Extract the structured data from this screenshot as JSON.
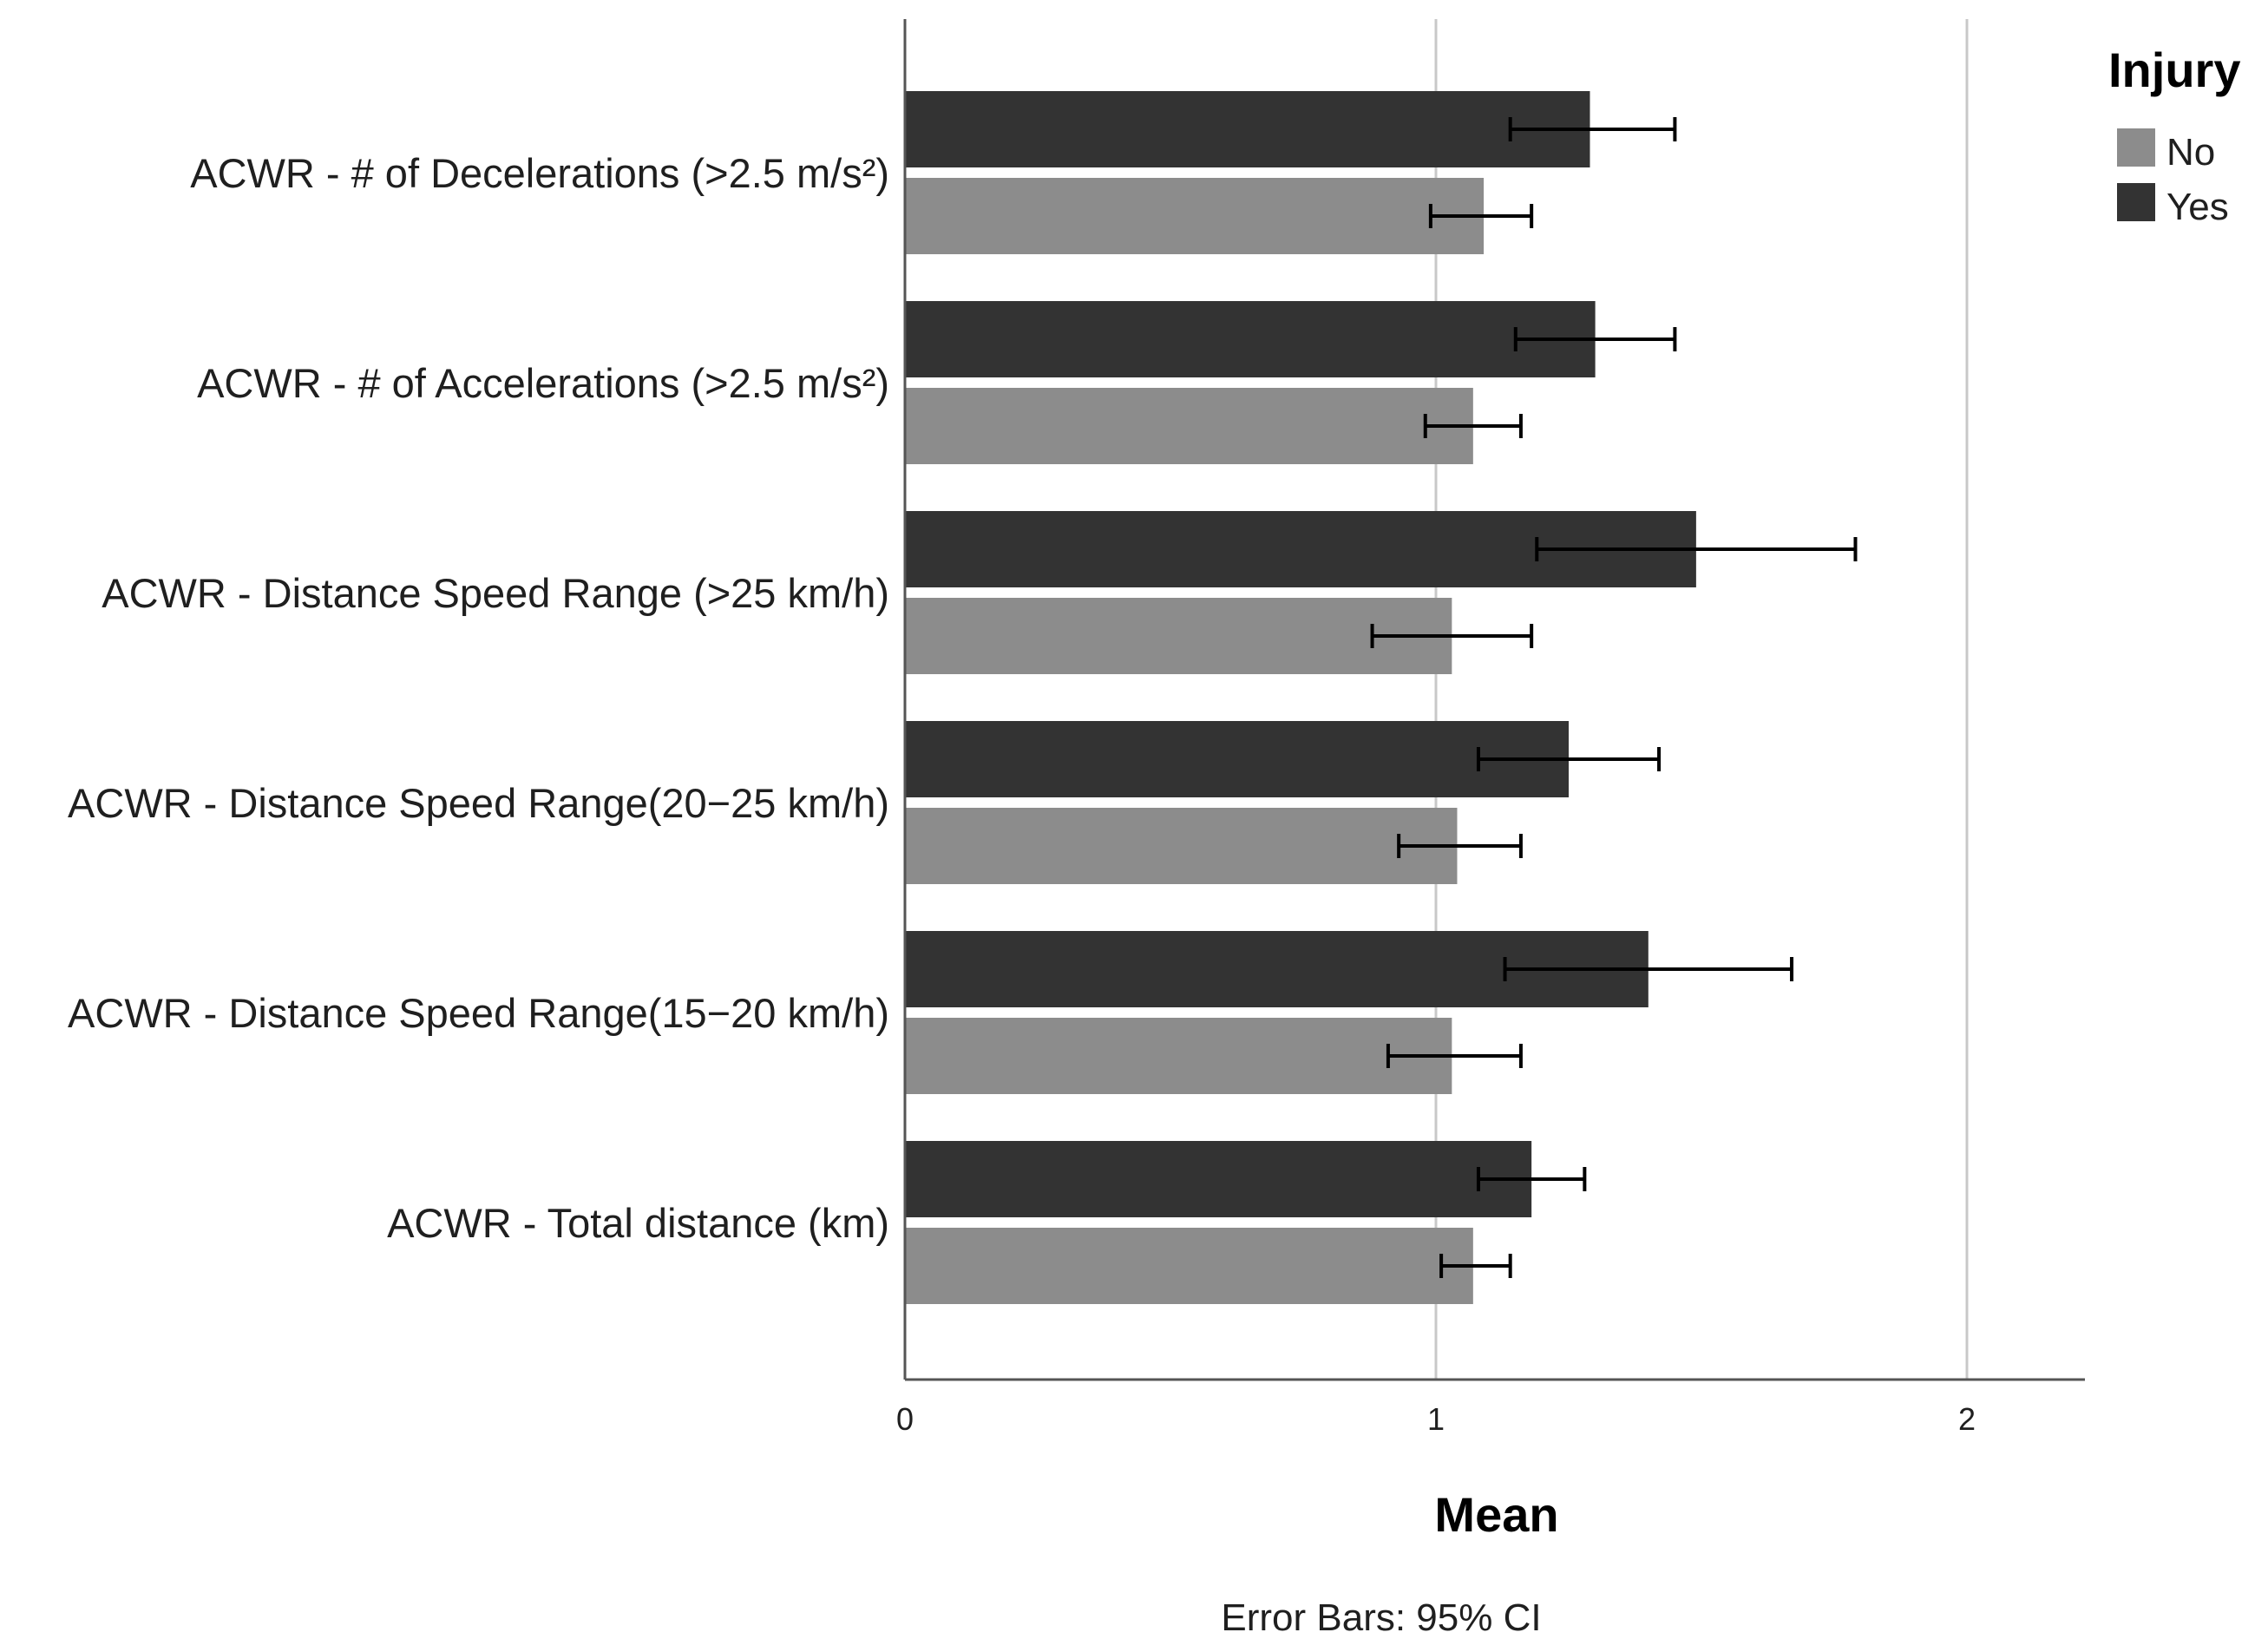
{
  "chart_data": {
    "type": "bar",
    "orientation": "horizontal",
    "title": "",
    "xlabel": "Mean",
    "ylabel": "",
    "xlim": [
      0,
      2.2
    ],
    "xticks": [
      "0",
      "1",
      "2"
    ],
    "grid": true,
    "legend": {
      "title": "Injury",
      "placement": "top-right",
      "entries": [
        "No",
        "Yes"
      ]
    },
    "categories": [
      "ACWR - # of Decelerations (>2.5 m/s²)",
      "ACWR - # of Accelerations (>2.5 m/s²)",
      "ACWR - Distance Speed Range (>25 km/h)",
      "ACWR - Distance Speed Range(20−25 km/h)",
      "ACWR - Distance Speed Range(15−20 km/h)",
      "ACWR - Total distance (km)"
    ],
    "series": [
      {
        "name": "Yes",
        "color": "#333333",
        "values": [
          1.29,
          1.3,
          1.49,
          1.25,
          1.4,
          1.18
        ],
        "ci_low": [
          1.14,
          1.15,
          1.19,
          1.08,
          1.13,
          1.08
        ],
        "ci_high": [
          1.45,
          1.45,
          1.79,
          1.42,
          1.67,
          1.28
        ]
      },
      {
        "name": "No",
        "color": "#8c8c8c",
        "values": [
          1.09,
          1.07,
          1.03,
          1.04,
          1.03,
          1.07
        ],
        "ci_low": [
          0.99,
          0.98,
          0.88,
          0.93,
          0.91,
          1.01
        ],
        "ci_high": [
          1.18,
          1.16,
          1.18,
          1.16,
          1.16,
          1.14
        ]
      }
    ],
    "caption": "Error Bars: 95% CI"
  }
}
